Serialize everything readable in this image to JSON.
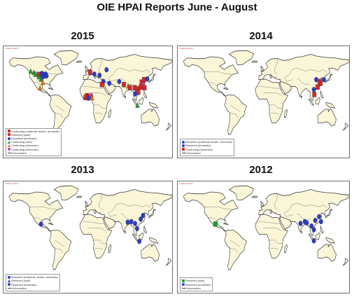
{
  "title": "OIE HPAI Reports  June - August",
  "panels": [
    {
      "year": "2015",
      "caption": "Incidents 2015",
      "legend": [
        {
          "label": "Continuing (outbreak cluster, domestic)",
          "symbol": "square",
          "color": "#d22a2a"
        },
        {
          "label": "Resolved (wild)",
          "symbol": "square",
          "color": "#d22a2a"
        },
        {
          "label": "Ancestral (domestic)",
          "symbol": "circle",
          "color": "#2a3ec8"
        },
        {
          "label": "Continuing (wild)",
          "symbol": "triangle",
          "color": "#1e9e34"
        },
        {
          "label": "Continuing (domestic)",
          "symbol": "triangle",
          "color": "#e07a1a"
        },
        {
          "label": "Continuing (domestic)",
          "symbol": "circle",
          "color": "#c8409a"
        },
        {
          "label": "Information",
          "symbol": "line",
          "color": "#444444"
        }
      ],
      "markers": [
        {
          "lon": -122,
          "lat": 49,
          "symbol": "triangle",
          "color": "#1e9e34"
        },
        {
          "lon": -115,
          "lat": 47,
          "symbol": "triangle",
          "color": "#1e9e34"
        },
        {
          "lon": -112,
          "lat": 44,
          "symbol": "triangle",
          "color": "#1e9e34"
        },
        {
          "lon": -105,
          "lat": 44,
          "symbol": "square",
          "color": "#d22a2a"
        },
        {
          "lon": -98,
          "lat": 46,
          "symbol": "circle",
          "color": "#2a3ec8"
        },
        {
          "lon": -95,
          "lat": 44,
          "symbol": "circle",
          "color": "#2a3ec8"
        },
        {
          "lon": -92,
          "lat": 42,
          "symbol": "circle",
          "color": "#2a3ec8"
        },
        {
          "lon": -90,
          "lat": 45,
          "symbol": "circle",
          "color": "#2a3ec8"
        },
        {
          "lon": -97,
          "lat": 40,
          "symbol": "circle",
          "color": "#2a3ec8"
        },
        {
          "lon": -88,
          "lat": 42,
          "symbol": "circle",
          "color": "#2a3ec8"
        },
        {
          "lon": -100,
          "lat": 36,
          "symbol": "triangle",
          "color": "#1e9e34"
        },
        {
          "lon": -104,
          "lat": 40,
          "symbol": "triangle",
          "color": "#1e9e34"
        },
        {
          "lon": -96,
          "lat": 31,
          "symbol": "triangle",
          "color": "#e07a1a"
        },
        {
          "lon": -102,
          "lat": 22,
          "symbol": "triangle",
          "color": "#e07a1a"
        },
        {
          "lon": 5,
          "lat": 48,
          "symbol": "square",
          "color": "#d22a2a"
        },
        {
          "lon": 14,
          "lat": 45,
          "symbol": "circle",
          "color": "#2a3ec8"
        },
        {
          "lon": 25,
          "lat": 43,
          "symbol": "circle",
          "color": "#2a3ec8"
        },
        {
          "lon": 33,
          "lat": 33,
          "symbol": "circle",
          "color": "#2a3ec8"
        },
        {
          "lon": 40,
          "lat": 52,
          "symbol": "circle",
          "color": "#2a3ec8"
        },
        {
          "lon": 30,
          "lat": 28,
          "symbol": "square",
          "color": "#d22a2a"
        },
        {
          "lon": -2,
          "lat": 10,
          "symbol": "square",
          "color": "#d22a2a"
        },
        {
          "lon": 3,
          "lat": 8,
          "symbol": "square",
          "color": "#d22a2a"
        },
        {
          "lon": 7,
          "lat": 10,
          "symbol": "circle",
          "color": "#c8409a"
        },
        {
          "lon": -5,
          "lat": 7,
          "symbol": "square",
          "color": "#d22a2a"
        },
        {
          "lon": 1,
          "lat": 6,
          "symbol": "circle",
          "color": "#2a3ec8"
        },
        {
          "lon": 9,
          "lat": 6,
          "symbol": "triangle",
          "color": "#e07a1a"
        },
        {
          "lon": 46,
          "lat": 30,
          "symbol": "circle",
          "color": "#2a3ec8"
        },
        {
          "lon": 67,
          "lat": 33,
          "symbol": "circle",
          "color": "#2a3ec8"
        },
        {
          "lon": 77,
          "lat": 28,
          "symbol": "square",
          "color": "#d22a2a"
        },
        {
          "lon": 86,
          "lat": 25,
          "symbol": "triangle",
          "color": "#e07a1a"
        },
        {
          "lon": 90,
          "lat": 23,
          "symbol": "square",
          "color": "#d22a2a"
        },
        {
          "lon": 100,
          "lat": 23,
          "symbol": "square",
          "color": "#d22a2a"
        },
        {
          "lon": 105,
          "lat": 21,
          "symbol": "square",
          "color": "#d22a2a"
        },
        {
          "lon": 108,
          "lat": 16,
          "symbol": "square",
          "color": "#d22a2a"
        },
        {
          "lon": 113,
          "lat": 24,
          "symbol": "square",
          "color": "#d22a2a"
        },
        {
          "lon": 115,
          "lat": 32,
          "symbol": "square",
          "color": "#d22a2a"
        },
        {
          "lon": 118,
          "lat": 30,
          "symbol": "circle",
          "color": "#c8409a"
        },
        {
          "lon": 120,
          "lat": 36,
          "symbol": "square",
          "color": "#d22a2a"
        },
        {
          "lon": 127,
          "lat": 37,
          "symbol": "circle",
          "color": "#2a3ec8"
        },
        {
          "lon": 101,
          "lat": 13,
          "symbol": "circle",
          "color": "#2a3ec8"
        },
        {
          "lon": 121,
          "lat": 23,
          "symbol": "square",
          "color": "#d22a2a"
        },
        {
          "lon": 106,
          "lat": -6,
          "symbol": "triangle",
          "color": "#1e9e34"
        }
      ]
    },
    {
      "year": "2014",
      "caption": "Incidents 2014",
      "legend": [
        {
          "label": "Resolved (outbreak cluster, domestic)",
          "symbol": "circle",
          "color": "#2a3ec8"
        },
        {
          "label": "Resolved (domestic)",
          "symbol": "circle",
          "color": "#2a3ec8"
        },
        {
          "label": "Continuing (domestic)",
          "symbol": "square",
          "color": "#d22a2a"
        },
        {
          "label": "Information",
          "symbol": "line",
          "color": "#444444"
        }
      ],
      "markers": [
        {
          "lon": 111,
          "lat": 36,
          "symbol": "circle",
          "color": "#2a3ec8"
        },
        {
          "lon": 118,
          "lat": 33,
          "symbol": "square",
          "color": "#d22a2a"
        },
        {
          "lon": 120,
          "lat": 30,
          "symbol": "square",
          "color": "#d22a2a"
        },
        {
          "lon": 127,
          "lat": 36,
          "symbol": "circle",
          "color": "#2a3ec8"
        },
        {
          "lon": 114,
          "lat": 24,
          "symbol": "square",
          "color": "#d22a2a"
        },
        {
          "lon": 107,
          "lat": 12,
          "symbol": "square",
          "color": "#d22a2a"
        },
        {
          "lon": 106,
          "lat": 20,
          "symbol": "circle",
          "color": "#2a3ec8"
        }
      ]
    },
    {
      "year": "2013",
      "caption": "Incidents 2013",
      "legend": [
        {
          "label": "Resolved (outbreak cluster, domestic)",
          "symbol": "circle",
          "color": "#2a3ec8"
        },
        {
          "label": "Resolved (wild)",
          "symbol": "triangle",
          "color": "#2a3ec8"
        },
        {
          "label": "Resolved (domestic)",
          "symbol": "circle",
          "color": "#2a3ec8"
        },
        {
          "label": "Information",
          "symbol": "line",
          "color": "#444444"
        }
      ],
      "markers": [
        {
          "lon": -100,
          "lat": 21,
          "symbol": "circle",
          "color": "#2a3ec8"
        },
        {
          "lon": 85,
          "lat": 24,
          "symbol": "circle",
          "color": "#2a3ec8"
        },
        {
          "lon": 93,
          "lat": 25,
          "symbol": "circle",
          "color": "#2a3ec8"
        },
        {
          "lon": 101,
          "lat": 22,
          "symbol": "circle",
          "color": "#2a3ec8"
        },
        {
          "lon": 105,
          "lat": 14,
          "symbol": "circle",
          "color": "#2a3ec8"
        },
        {
          "lon": 113,
          "lat": 29,
          "symbol": "circle",
          "color": "#2a3ec8"
        },
        {
          "lon": 118,
          "lat": 35,
          "symbol": "circle",
          "color": "#2a3ec8"
        },
        {
          "lon": 110,
          "lat": -7,
          "symbol": "circle",
          "color": "#2a3ec8"
        }
      ]
    },
    {
      "year": "2012",
      "caption": "Incidents 2012",
      "legend": [
        {
          "label": "Resolved (wild)",
          "symbol": "square",
          "color": "#1e9e34"
        },
        {
          "label": "Resolved (domestic)",
          "symbol": "circle",
          "color": "#2a3ec8"
        },
        {
          "label": "Information",
          "symbol": "line",
          "color": "#444444"
        }
      ],
      "markers": [
        {
          "lon": -101,
          "lat": 21,
          "symbol": "square",
          "color": "#1e9e34"
        },
        {
          "lon": 78,
          "lat": 22,
          "symbol": "circle",
          "color": "#2a3ec8"
        },
        {
          "lon": 87,
          "lat": 25,
          "symbol": "circle",
          "color": "#2a3ec8"
        },
        {
          "lon": 91,
          "lat": 23,
          "symbol": "circle",
          "color": "#2a3ec8"
        },
        {
          "lon": 101,
          "lat": 18,
          "symbol": "circle",
          "color": "#2a3ec8"
        },
        {
          "lon": 106,
          "lat": 12,
          "symbol": "circle",
          "color": "#2a3ec8"
        },
        {
          "lon": 109,
          "lat": 27,
          "symbol": "circle",
          "color": "#2a3ec8"
        },
        {
          "lon": 117,
          "lat": 33,
          "symbol": "circle",
          "color": "#2a3ec8"
        },
        {
          "lon": 121,
          "lat": 25,
          "symbol": "circle",
          "color": "#2a3ec8"
        },
        {
          "lon": 106,
          "lat": -6,
          "symbol": "circle",
          "color": "#2a3ec8"
        }
      ]
    }
  ]
}
